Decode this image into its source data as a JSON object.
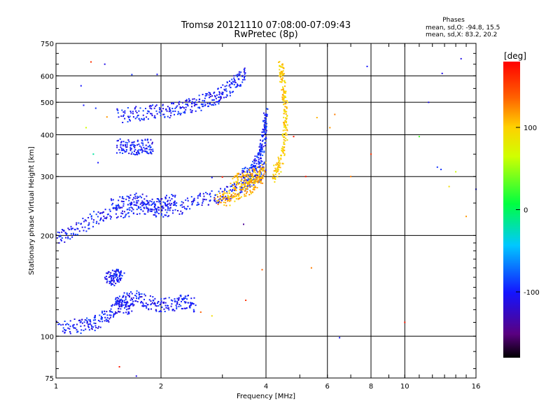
{
  "chart_data": {
    "type": "scatter",
    "title": "Tromsø 20121110 07:08:00-07:09:43",
    "subtitle": "RwPretec (8p)",
    "xlabel": "Frequency [MHz]",
    "ylabel": "Stationary phase Virtual Height [km]",
    "x_scale": "log",
    "y_scale": "log",
    "xlim": [
      1,
      16
    ],
    "ylim": [
      75,
      750
    ],
    "x_ticks": [
      "1",
      "2",
      "4",
      "6",
      "8",
      "10",
      "16"
    ],
    "y_ticks": [
      "75",
      "100",
      "200",
      "300",
      "400",
      "500",
      "600",
      "750"
    ],
    "grid": true,
    "stats": {
      "heading": "Phases",
      "o_line": "mean, sd,O: -94.8, 15.5",
      "x_line": "mean, sd,X:  83.2, 20.2"
    },
    "colorbar": {
      "label": "[deg]",
      "range": [
        -180,
        180
      ],
      "ticks": [
        "100",
        "0",
        "-100"
      ]
    },
    "traces": [
      {
        "x": [
          1.02,
          1.15,
          1.25,
          1.35,
          1.45,
          1.55,
          1.65
        ],
        "y": [
          106,
          107,
          108,
          112,
          120,
          124,
          121
        ],
        "phase": -100
      },
      {
        "x": [
          1.48,
          1.58,
          1.7,
          1.85,
          2.0,
          2.2,
          2.35,
          2.5
        ],
        "y": [
          124,
          128,
          131,
          126,
          124,
          125,
          127,
          124
        ],
        "phase": -100
      },
      {
        "x": [
          1.0,
          1.1,
          1.25,
          1.4,
          1.6,
          1.8,
          2.0,
          2.3,
          2.6,
          2.9,
          3.2,
          3.5,
          3.8,
          3.95
        ],
        "y": [
          195,
          205,
          220,
          233,
          238,
          240,
          238,
          243,
          255,
          262,
          272,
          285,
          300,
          320
        ],
        "phase": -100
      },
      {
        "x": [
          2.9,
          3.1,
          3.3,
          3.5,
          3.7,
          3.85,
          3.95
        ],
        "y": [
          255,
          258,
          266,
          275,
          285,
          300,
          318
        ],
        "phase": 110
      },
      {
        "x": [
          3.4,
          3.6,
          3.75,
          3.85,
          3.92,
          3.96,
          4.0
        ],
        "y": [
          300,
          310,
          330,
          350,
          375,
          420,
          460
        ],
        "phase": -95
      },
      {
        "x": [
          1.5,
          1.7,
          1.9,
          2.1,
          2.3,
          2.5,
          2.7,
          2.9,
          3.1,
          3.3,
          3.5
        ],
        "y": [
          455,
          462,
          468,
          472,
          480,
          492,
          505,
          520,
          545,
          575,
          615
        ],
        "phase": -100
      },
      {
        "x": [
          1.5,
          1.6,
          1.7,
          1.8,
          1.9
        ],
        "y": [
          370,
          368,
          365,
          370,
          368
        ],
        "phase": -100
      },
      {
        "x": [
          4.2,
          4.35,
          4.5,
          4.55,
          4.55,
          4.5,
          4.45,
          4.4
        ],
        "y": [
          300,
          320,
          360,
          420,
          480,
          540,
          600,
          640
        ],
        "phase": 100
      },
      {
        "x": [
          3.2,
          3.4,
          3.6,
          3.8
        ],
        "y": [
          286,
          295,
          300,
          305
        ],
        "phase": 110
      },
      {
        "x": [
          1.4,
          1.45,
          1.5,
          1.55
        ],
        "y": [
          150,
          148,
          152,
          150
        ],
        "phase": -100
      },
      {
        "x": [
          1.45,
          1.6,
          1.75,
          1.9,
          2.05,
          2.2
        ],
        "y": [
          248,
          250,
          255,
          245,
          250,
          255
        ],
        "phase": -100
      }
    ],
    "isolated_points": [
      {
        "x": 1.26,
        "y": 660,
        "phase": 160
      },
      {
        "x": 1.38,
        "y": 650,
        "phase": -110
      },
      {
        "x": 1.65,
        "y": 605,
        "phase": -90
      },
      {
        "x": 1.95,
        "y": 606,
        "phase": -100
      },
      {
        "x": 1.18,
        "y": 560,
        "phase": -100
      },
      {
        "x": 1.2,
        "y": 490,
        "phase": -100
      },
      {
        "x": 1.3,
        "y": 480,
        "phase": -90
      },
      {
        "x": 1.4,
        "y": 452,
        "phase": 120
      },
      {
        "x": 1.22,
        "y": 420,
        "phase": 60
      },
      {
        "x": 1.28,
        "y": 350,
        "phase": -20
      },
      {
        "x": 1.32,
        "y": 330,
        "phase": -100
      },
      {
        "x": 2.8,
        "y": 298,
        "phase": -100
      },
      {
        "x": 3.0,
        "y": 299,
        "phase": 170
      },
      {
        "x": 3.45,
        "y": 216,
        "phase": -140
      },
      {
        "x": 4.8,
        "y": 395,
        "phase": 170
      },
      {
        "x": 5.2,
        "y": 300,
        "phase": 170
      },
      {
        "x": 5.6,
        "y": 450,
        "phase": 110
      },
      {
        "x": 6.1,
        "y": 420,
        "phase": 120
      },
      {
        "x": 6.3,
        "y": 460,
        "phase": 130
      },
      {
        "x": 7.0,
        "y": 300,
        "phase": 130
      },
      {
        "x": 7.8,
        "y": 640,
        "phase": -100
      },
      {
        "x": 8.0,
        "y": 350,
        "phase": 160
      },
      {
        "x": 10.0,
        "y": 110,
        "phase": 170
      },
      {
        "x": 11.0,
        "y": 395,
        "phase": 20
      },
      {
        "x": 11.7,
        "y": 500,
        "phase": -110
      },
      {
        "x": 12.4,
        "y": 320,
        "phase": -90
      },
      {
        "x": 12.7,
        "y": 315,
        "phase": -90
      },
      {
        "x": 12.8,
        "y": 610,
        "phase": -110
      },
      {
        "x": 13.4,
        "y": 280,
        "phase": 90
      },
      {
        "x": 14.0,
        "y": 310,
        "phase": 60
      },
      {
        "x": 14.5,
        "y": 675,
        "phase": -110
      },
      {
        "x": 15.0,
        "y": 228,
        "phase": 120
      },
      {
        "x": 16.0,
        "y": 275,
        "phase": -100
      },
      {
        "x": 6.5,
        "y": 99,
        "phase": -100
      },
      {
        "x": 5.4,
        "y": 160,
        "phase": 130
      },
      {
        "x": 3.9,
        "y": 158,
        "phase": 140
      },
      {
        "x": 2.6,
        "y": 118,
        "phase": 140
      },
      {
        "x": 2.8,
        "y": 115,
        "phase": 90
      },
      {
        "x": 1.52,
        "y": 81,
        "phase": 170
      },
      {
        "x": 1.7,
        "y": 76,
        "phase": -110
      },
      {
        "x": 3.5,
        "y": 128,
        "phase": 160
      }
    ]
  }
}
